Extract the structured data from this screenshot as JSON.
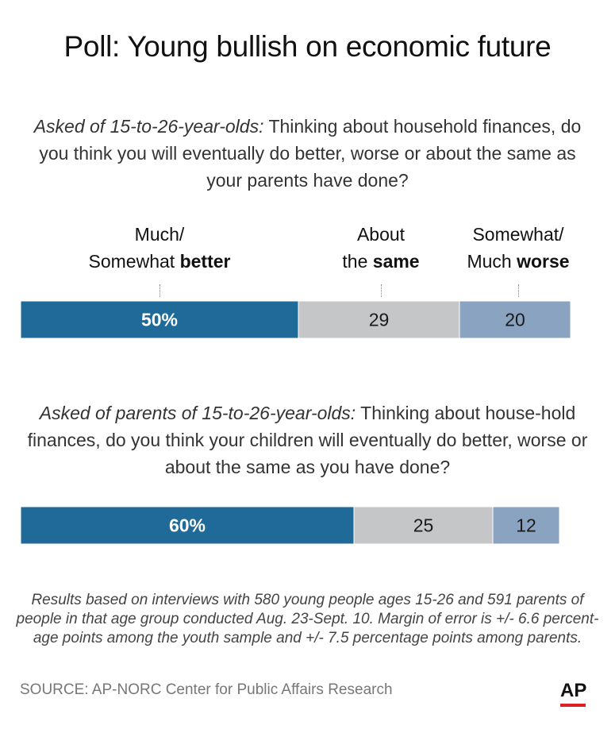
{
  "title": "Poll: Young bullish on economic future",
  "questions": [
    {
      "lead": "Asked of 15-to-26-year-olds:",
      "text": " Thinking about household finances, do you think you will eventually do better, worse or about the same as your parents have done?"
    },
    {
      "lead": "Asked of parents of 15-to-26-year-olds:",
      "text": " Thinking about house-hold finances, do you think your children will eventually do better, worse or about the same as you have done?"
    }
  ],
  "categories": [
    {
      "line1": "Much/",
      "line2_pre": "Somewhat ",
      "line2_bold": "better"
    },
    {
      "line1": "About",
      "line2_pre": "the ",
      "line2_bold": "same"
    },
    {
      "line1": "Somewhat/",
      "line2_pre": "Much ",
      "line2_bold": "worse"
    }
  ],
  "colors": {
    "better": "#1f6a98",
    "same": "#c4c6c8",
    "worse": "#8aa3c0"
  },
  "chart_data": {
    "type": "bar",
    "orientation": "horizontal-stacked",
    "categories": [
      "Much/Somewhat better",
      "About the same",
      "Somewhat/Much worse"
    ],
    "series": [
      {
        "name": "Asked of 15-to-26-year-olds",
        "values": [
          50,
          29,
          20
        ],
        "labels": [
          "50%",
          "29",
          "20"
        ]
      },
      {
        "name": "Asked of parents of 15-to-26-year-olds",
        "values": [
          60,
          25,
          12
        ],
        "labels": [
          "60%",
          "25",
          "12"
        ]
      }
    ]
  },
  "notes": "Results based on interviews with 580 young people ages 15-26 and 591 parents of people in that age group conducted Aug. 23-Sept. 10. Margin of error is +/- 6.6 percent-age points among the youth sample and +/- 7.5   percentage points among parents.",
  "source": "SOURCE: AP-NORC Center for Public Affairs Research",
  "logo": "AP"
}
